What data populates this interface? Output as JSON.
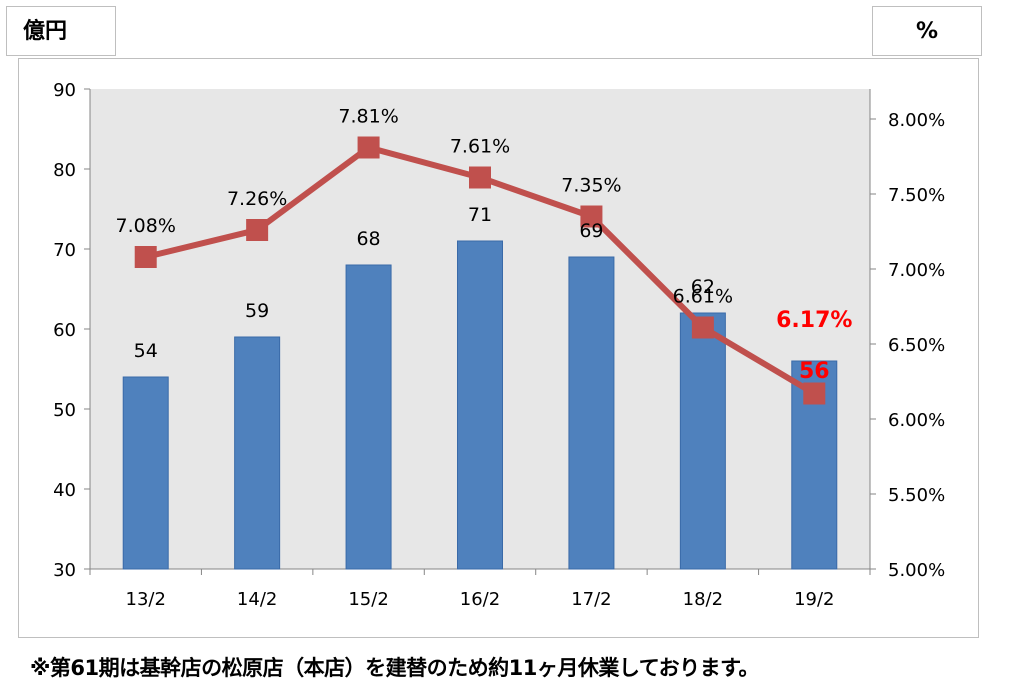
{
  "units": {
    "left": "億円",
    "right": "%"
  },
  "footnote": "※第61期は基幹店の松原店（本店）を建替のため約11ヶ月休業しております。",
  "colors": {
    "bar": "#4f81bd",
    "line": "#c0504d",
    "highlight": "#ff0000",
    "plot_bg": "#e7e7e7"
  },
  "chart_data": {
    "type": "bar",
    "categories": [
      "13/2",
      "14/2",
      "15/2",
      "16/2",
      "17/2",
      "18/2",
      "19/2"
    ],
    "series": [
      {
        "type": "bar",
        "axis": "left",
        "values": [
          54,
          59,
          68,
          71,
          69,
          62,
          56
        ],
        "labels": [
          "54",
          "59",
          "68",
          "71",
          "69",
          "62",
          "56"
        ]
      },
      {
        "type": "line",
        "axis": "right",
        "values": [
          7.08,
          7.26,
          7.81,
          7.61,
          7.35,
          6.61,
          6.17
        ],
        "labels": [
          "7.08%",
          "7.26%",
          "7.81%",
          "7.61%",
          "7.35%",
          "6.61%",
          "6.17%"
        ]
      }
    ],
    "highlight_index": 6,
    "y_left": {
      "ylim": [
        30,
        90
      ],
      "ticks": [
        "30",
        "40",
        "50",
        "60",
        "70",
        "80",
        "90"
      ]
    },
    "y_right": {
      "ylim": [
        5.0,
        8.2
      ],
      "ticks": [
        "5.00%",
        "5.50%",
        "6.00%",
        "6.50%",
        "7.00%",
        "7.50%",
        "8.00%"
      ],
      "tick_values": [
        5.0,
        5.5,
        6.0,
        6.5,
        7.0,
        7.5,
        8.0
      ]
    },
    "grid": false,
    "legend": "none"
  }
}
